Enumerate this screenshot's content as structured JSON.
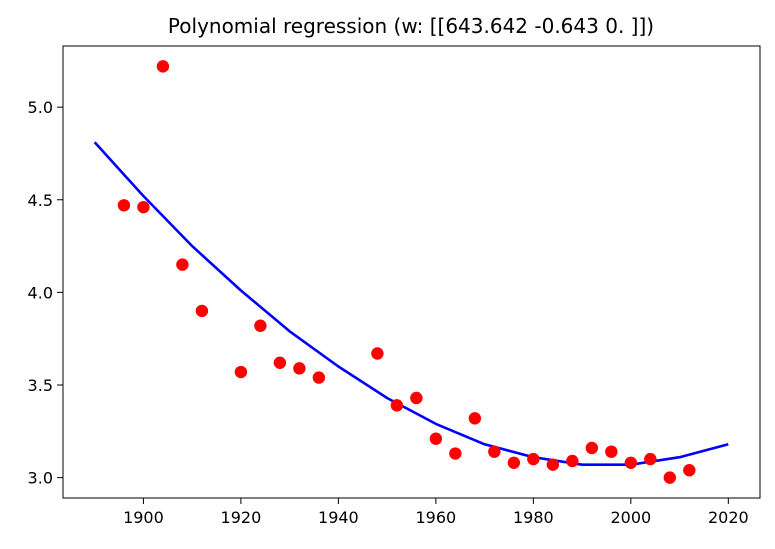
{
  "chart_data": {
    "type": "scatter",
    "title": "Polynomial regression (w: [[643.642  -0.643   0.   ]])",
    "xlabel": "",
    "ylabel": "",
    "xlim": [
      1883.5,
      2026.5
    ],
    "ylim": [
      2.89,
      5.33
    ],
    "xticks": [
      1900,
      1920,
      1940,
      1960,
      1980,
      2000,
      2020
    ],
    "yticks": [
      3.0,
      3.5,
      4.0,
      4.5,
      5.0
    ],
    "ytick_labels": [
      "3.0",
      "3.5",
      "4.0",
      "4.5",
      "5.0"
    ],
    "grid": false,
    "colors": {
      "points": "#ff0000",
      "fit_line": "#0000ff"
    },
    "points": {
      "x": [
        1896,
        1900,
        1904,
        1908,
        1912,
        1920,
        1924,
        1928,
        1932,
        1936,
        1948,
        1952,
        1956,
        1960,
        1964,
        1968,
        1972,
        1976,
        1980,
        1984,
        1988,
        1992,
        1996,
        2000,
        2004,
        2008,
        2012
      ],
      "y": [
        4.47,
        4.46,
        5.22,
        4.15,
        3.9,
        3.57,
        3.82,
        3.62,
        3.59,
        3.54,
        3.67,
        3.39,
        3.43,
        3.21,
        3.13,
        3.32,
        3.14,
        3.08,
        3.1,
        3.07,
        3.09,
        3.16,
        3.14,
        3.08,
        3.1,
        3.0,
        3.04
      ]
    },
    "fit_line": {
      "x": [
        1890,
        1900,
        1910,
        1920,
        1930,
        1940,
        1950,
        1960,
        1970,
        1980,
        1990,
        2000,
        2010,
        2020
      ],
      "y": [
        4.81,
        4.52,
        4.25,
        4.01,
        3.79,
        3.6,
        3.43,
        3.29,
        3.18,
        3.11,
        3.07,
        3.07,
        3.11,
        3.18
      ]
    }
  }
}
